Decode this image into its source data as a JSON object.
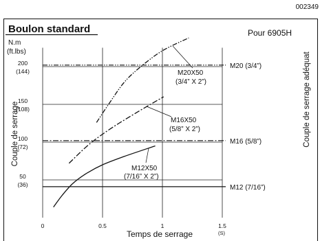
{
  "doc_code": "002349",
  "chart_data": {
    "type": "line",
    "title": "Boulon standard",
    "subtitle": "Pour 6905H",
    "xlabel": "Temps de serrage",
    "xunit": "(S)",
    "ylabel": "Couple de serrage",
    "yunit": "N.m",
    "yunit_alt": "(ft.lbs)",
    "y2label": "Couple de serrage adéquat",
    "xlim": [
      0,
      1.5
    ],
    "ylim": [
      0,
      225
    ],
    "grid": true,
    "xticks": [
      {
        "value": 0,
        "label": "0"
      },
      {
        "value": 0.5,
        "label": "0.5"
      },
      {
        "value": 1,
        "label": "1"
      },
      {
        "value": 1.5,
        "label": "1.5"
      }
    ],
    "yticks": [
      {
        "value": 50,
        "label": "50",
        "alt": "(36)"
      },
      {
        "value": 100,
        "label": "100",
        "alt": "(72)"
      },
      {
        "value": 150,
        "label": "150",
        "alt": "(108)"
      },
      {
        "value": 200,
        "label": "200",
        "alt": "(144)"
      }
    ],
    "series": [
      {
        "name": "M20X50",
        "subname": "(3/4” X 2”)",
        "dash": "dash-dot-dot",
        "points": [
          [
            0.45,
            126
          ],
          [
            0.55,
            150
          ],
          [
            0.68,
            179
          ],
          [
            0.82,
            200
          ],
          [
            1.0,
            221
          ],
          [
            1.22,
            238
          ]
        ]
      },
      {
        "name": "M16X50",
        "subname": "(5/8” X 2”)",
        "dash": "dash-dot",
        "points": [
          [
            0.22,
            72
          ],
          [
            0.38,
            96
          ],
          [
            0.55,
            116
          ],
          [
            0.72,
            133
          ],
          [
            0.9,
            150
          ],
          [
            1.01,
            160
          ]
        ]
      },
      {
        "name": "M12X50",
        "subname": "(7/16” X 2”)",
        "dash": "solid",
        "points": [
          [
            0.09,
            14
          ],
          [
            0.16,
            29
          ],
          [
            0.25,
            45
          ],
          [
            0.36,
            58
          ],
          [
            0.5,
            70
          ],
          [
            0.68,
            81
          ],
          [
            0.94,
            95
          ]
        ]
      }
    ],
    "reference_lines": [
      {
        "name": "M20 (3/4”)",
        "y": 202,
        "dash": "dash-dot-dot"
      },
      {
        "name": "M16 (5/8”)",
        "y": 102,
        "dash": "dash-dot"
      },
      {
        "name": "M12 (7/16”)",
        "y": 41,
        "dash": "solid"
      }
    ]
  }
}
